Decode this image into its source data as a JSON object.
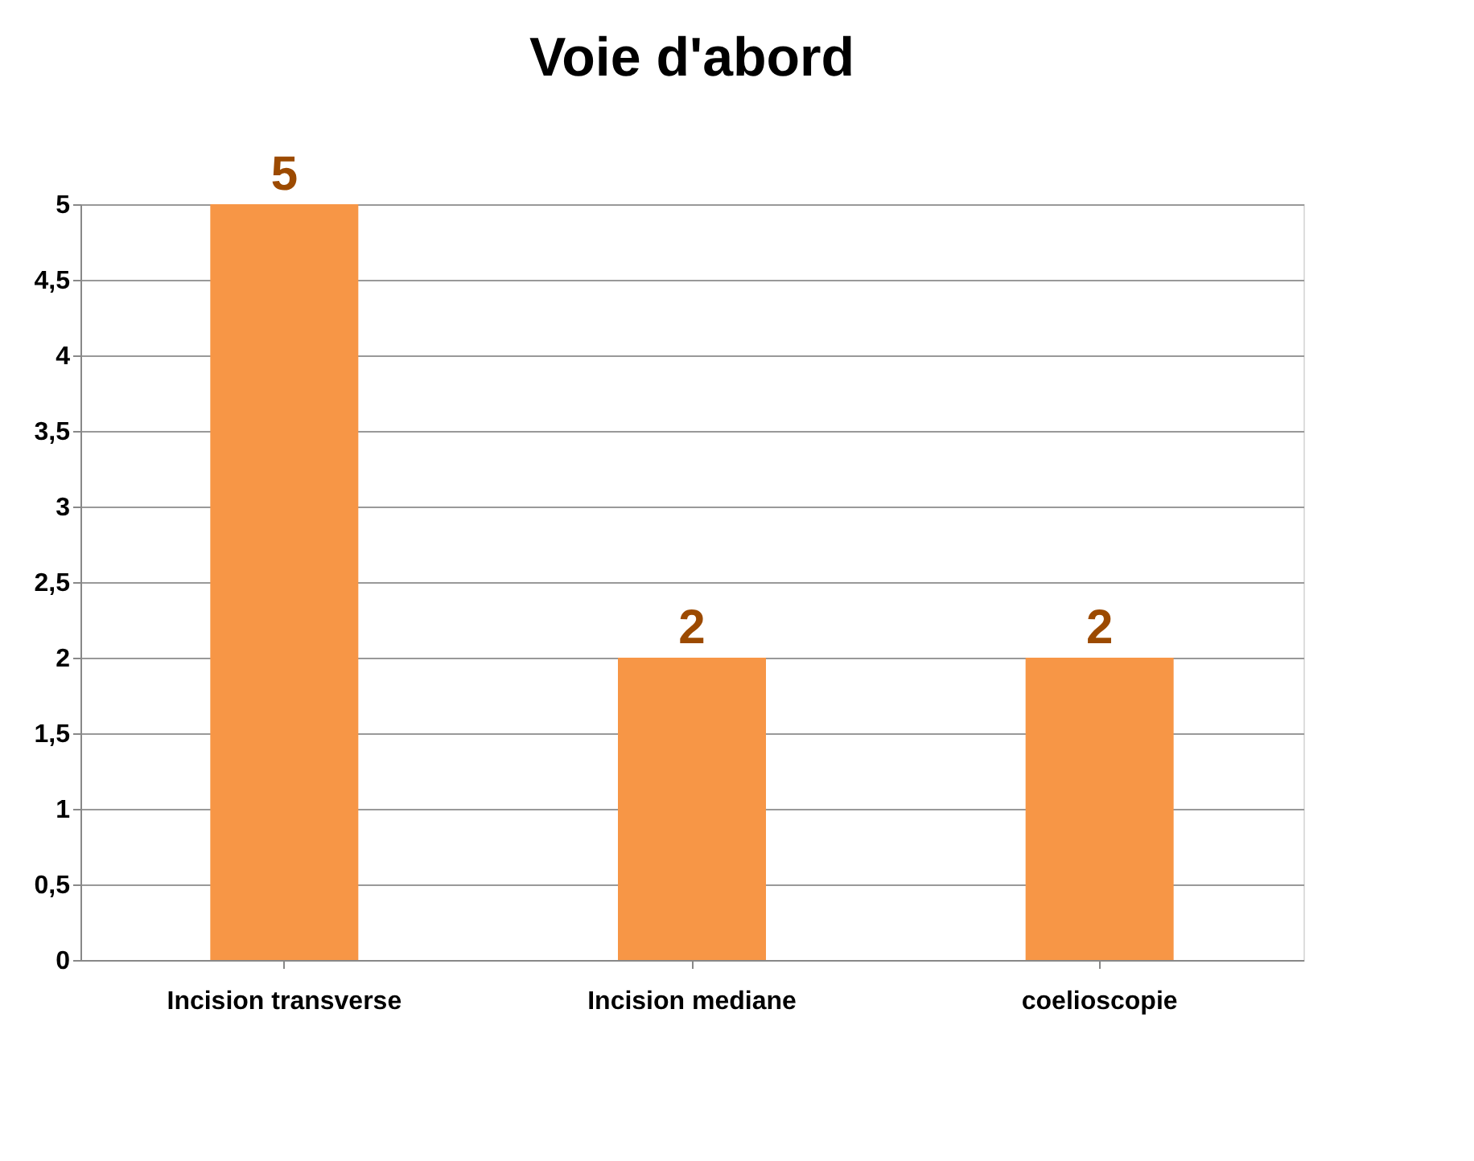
{
  "chart_data": {
    "type": "bar",
    "title": "Voie d'abord",
    "categories": [
      "Incision transverse",
      "Incision mediane",
      "coelioscopie"
    ],
    "values": [
      5,
      2,
      2
    ],
    "color": "#f79646",
    "ylim": [
      0,
      5
    ],
    "yticks": [
      0,
      {
        "value": 0.5,
        "label": "0,5"
      },
      1,
      {
        "value": 1.5,
        "label": "1,5"
      },
      2,
      {
        "value": 2.5,
        "label": "2,5"
      },
      3,
      {
        "value": 3.5,
        "label": "3,5"
      },
      4,
      {
        "value": 4.5,
        "label": "4,5"
      },
      5
    ],
    "grid": "y",
    "data_labels": true
  }
}
